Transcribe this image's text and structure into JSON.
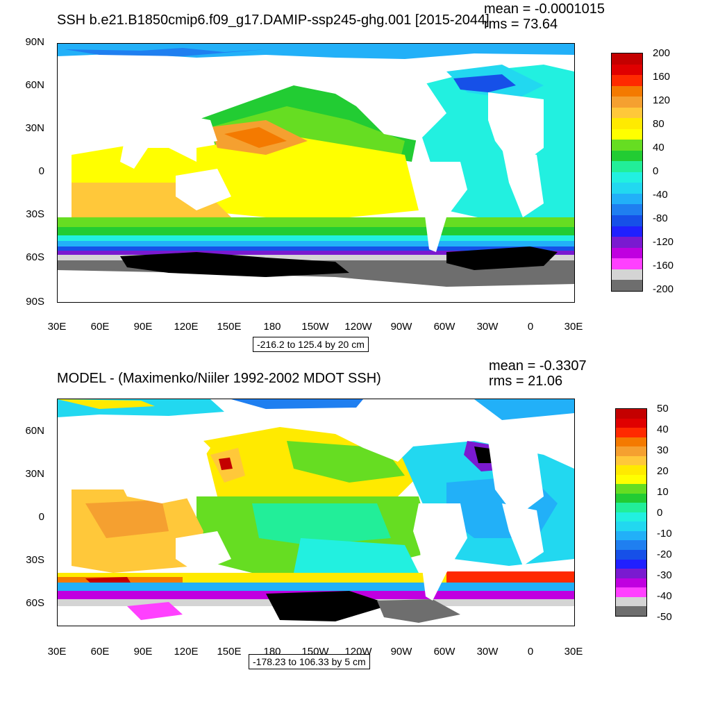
{
  "top": {
    "title": "SSH b.e21.B1850cmip6.f09_g17.DAMIP-ssp245-ghg.001 [2015-2044]",
    "mean": "mean = -0.0001015",
    "rms": "rms = 73.64",
    "lat_labels": [
      "90N",
      "60N",
      "30N",
      "0",
      "30S",
      "60S",
      "90S"
    ],
    "lon_labels": [
      "30E",
      "60E",
      "90E",
      "120E",
      "150E",
      "180",
      "150W",
      "120W",
      "90W",
      "60W",
      "30W",
      "0",
      "30E"
    ],
    "info": "-216.2 to 125.4 by 20 cm",
    "colorbar_labels": [
      "200",
      "160",
      "120",
      "80",
      "40",
      "0",
      "-40",
      "-80",
      "-120",
      "-160",
      "-200"
    ],
    "colorbar_colors": [
      "#c40000",
      "#e00000",
      "#ff2a00",
      "#f47a00",
      "#f5a030",
      "#ffc83a",
      "#ffea00",
      "#ffff00",
      "#66dd22",
      "#22cc33",
      "#22ee99",
      "#22f0e0",
      "#22d8f0",
      "#22b0f8",
      "#1f7ff0",
      "#1650e8",
      "#2020ff",
      "#7a1ad0",
      "#c000e0",
      "#ff40ff",
      "#d4d4d4",
      "#6e6e6e"
    ]
  },
  "bottom": {
    "title": "MODEL - (Maximenko/Niiler 1992-2002 MDOT SSH)",
    "mean": "mean = -0.3307",
    "rms": "rms = 21.06",
    "lat_labels": [
      "60N",
      "30N",
      "0",
      "30S",
      "60S"
    ],
    "lon_labels": [
      "30E",
      "60E",
      "90E",
      "120E",
      "150E",
      "180",
      "150W",
      "120W",
      "90W",
      "60W",
      "30W",
      "0",
      "30E"
    ],
    "info": "-178.23 to 106.33 by 5 cm",
    "colorbar_labels": [
      "50",
      "40",
      "30",
      "20",
      "10",
      "0",
      "-10",
      "-20",
      "-30",
      "-40",
      "-50"
    ],
    "colorbar_colors": [
      "#c40000",
      "#e00000",
      "#ff2a00",
      "#f47a00",
      "#f5a030",
      "#ffc83a",
      "#ffea00",
      "#ffff00",
      "#66dd22",
      "#22cc33",
      "#22ee99",
      "#22f0e0",
      "#22d8f0",
      "#22b0f8",
      "#1f7ff0",
      "#1650e8",
      "#2020ff",
      "#7a1ad0",
      "#c000e0",
      "#ff40ff",
      "#d4d4d4",
      "#6e6e6e"
    ]
  }
}
